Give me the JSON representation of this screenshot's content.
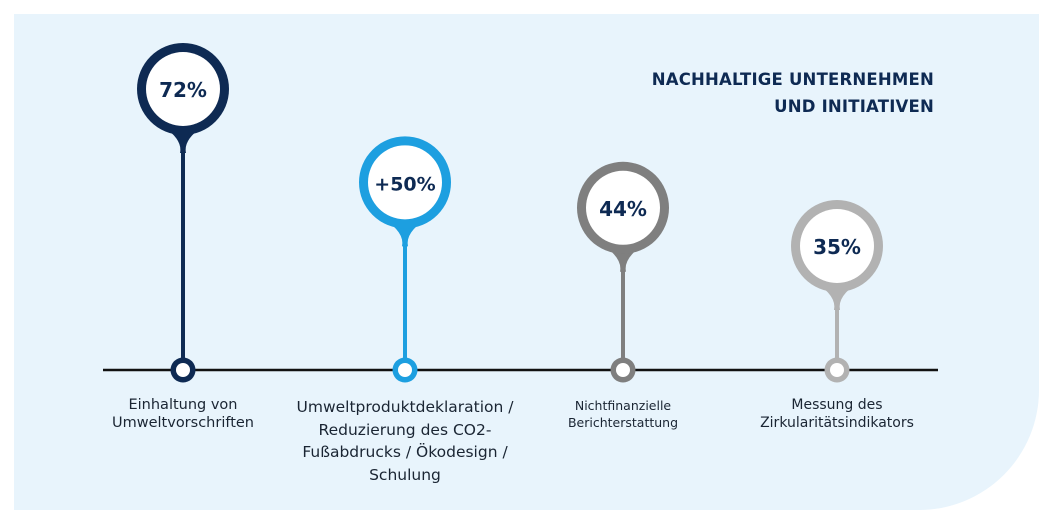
{
  "title_lines": [
    "NACHHALTIGE UNTERNEHMEN",
    "UND INITIATIVEN"
  ],
  "chart_data": {
    "type": "other",
    "items": [
      {
        "value_label": "72%",
        "label": "Einhaltung von Umweltvorschriften",
        "label_lines": [
          "Einhaltung von",
          "Umweltvorschriften"
        ],
        "color": "#0e2a53",
        "value": 72
      },
      {
        "value_label": "+50%",
        "label": "Umweltproduktdeklaration / Reduzierung des CO2-Fußabdrucks / Ökodesign / Schulung",
        "label_lines": [
          "Umweltproduktdeklaration /",
          "Reduzierung des CO2-",
          "Fußabdrucks / Ökodesign /",
          "Schulung"
        ],
        "color": "#1d9fe0",
        "value": 50
      },
      {
        "value_label": "44%",
        "label": "Nichtfinanzielle Berichterstattung",
        "label_lines": [
          "Nichtfinanzielle",
          "Berichterstattung"
        ],
        "color": "#7f7f7f",
        "value": 44
      },
      {
        "value_label": "35%",
        "label": "Messung des Zirkularitätsindikators",
        "label_lines": [
          "Messung des",
          "Zirkularitätsindikators"
        ],
        "color": "#b2b2b2",
        "value": 35
      }
    ]
  }
}
